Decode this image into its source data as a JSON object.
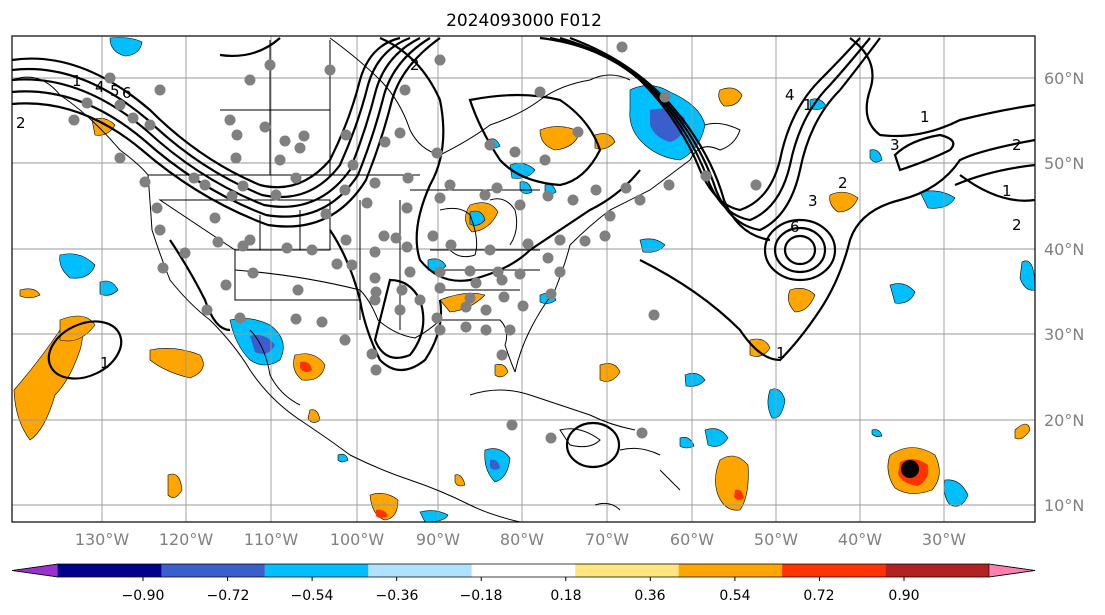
{
  "title": "2024093000 F012",
  "map": {
    "lon_labels": [
      "130°W",
      "120°W",
      "110°W",
      "100°W",
      "90°W",
      "80°W",
      "70°W",
      "60°W",
      "50°W",
      "40°W",
      "30°W"
    ],
    "lat_labels": [
      "60°N",
      "50°N",
      "40°N",
      "30°N",
      "20°N",
      "10°N"
    ],
    "contour_labels": [
      "1",
      "2",
      "4",
      "5",
      "6",
      "2",
      "1",
      "2",
      "3",
      "1",
      "2",
      "1",
      "2",
      "4",
      "3",
      "6",
      "1",
      "1"
    ],
    "marker": {
      "label": "storm-center-marker",
      "color": "#000000"
    },
    "station_color": "#808080"
  },
  "colorbar": {
    "tick_labels": [
      "−0.90",
      "−0.72",
      "−0.54",
      "−0.36",
      "−0.18",
      "0.18",
      "0.36",
      "0.54",
      "0.72",
      "0.90"
    ],
    "colors": [
      "#9932cc",
      "#00008b",
      "#3a5fcd",
      "#00bfff",
      "#b0e2ff",
      "#ffffff",
      "#ffe680",
      "#ffa500",
      "#ff3300",
      "#b22222",
      "#ff80b0"
    ]
  }
}
